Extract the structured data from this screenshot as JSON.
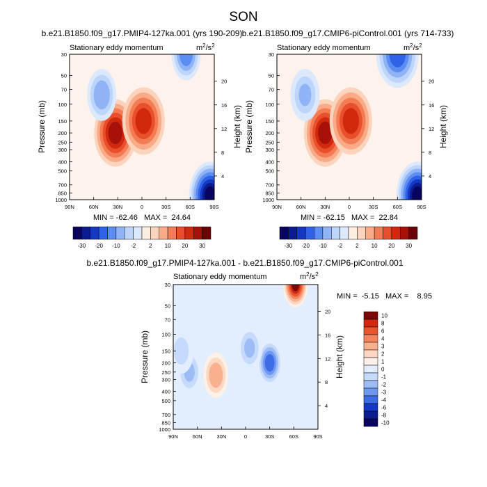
{
  "title": "SON",
  "contour_levels_full": [
    -30,
    -25,
    -20,
    -15,
    -10,
    -5,
    -2,
    -1,
    1,
    2,
    5,
    10,
    15,
    20,
    25,
    30
  ],
  "colorbar_full_labels": [
    "-30",
    "-20",
    "-10",
    "-2",
    "2",
    "10",
    "20",
    "30"
  ],
  "contour_levels_diff": [
    -10,
    -8,
    -6,
    -4,
    -3,
    -2,
    -1,
    0,
    1,
    2,
    3,
    4,
    6,
    8,
    10
  ],
  "colorbar_diff_labels": [
    "10",
    "8",
    "6",
    "4",
    "3",
    "2",
    "1",
    "0",
    "-1",
    "-2",
    "-3",
    "-4",
    "-6",
    "-8",
    "-10"
  ],
  "colors_full": [
    "#08045f",
    "#0a1c8f",
    "#1437c4",
    "#2f62e6",
    "#5b8df2",
    "#8fb3f5",
    "#bdd5fb",
    "#dce9fd",
    "#fdeee2",
    "#fcd3bd",
    "#f9aa86",
    "#f47c55",
    "#e94f2a",
    "#d1290e",
    "#a6120a",
    "#6a0507"
  ],
  "colors_diff": [
    "#08045f",
    "#0a1c8f",
    "#1437c4",
    "#3d6ce6",
    "#6e98f0",
    "#9dbcf6",
    "#c6dbfb",
    "#e2eefd",
    "#fdf0e6",
    "#fcd8c2",
    "#f9b08f",
    "#f4845d",
    "#e9552f",
    "#d1290e",
    "#7a0806"
  ],
  "chart_data": [
    {
      "type": "heatmap",
      "id": "left",
      "title": "b.e21.B1850.f09_g17.PMIP4-127ka.001 (yrs 190-209)",
      "left_label": "Stationary eddy momentum",
      "units": "m²/s²",
      "ylabel": "Pressure (mb)",
      "ylabel_right": "Height (km)",
      "x_ticks": [
        "90N",
        "60N",
        "30N",
        "0",
        "30S",
        "60S",
        "90S"
      ],
      "y_ticks": [
        "30",
        "50",
        "70",
        "100",
        "150",
        "200",
        "250",
        "300",
        "400",
        "500",
        "700",
        "850",
        "1000"
      ],
      "height_ticks": [
        "20",
        "16",
        "12",
        "8",
        "4"
      ],
      "min_max": "MIN = -62.46   MAX =  24.64",
      "ylim": [
        1000,
        30
      ],
      "xlim": [
        90,
        -90
      ],
      "features": [
        {
          "lat": 33,
          "p": 200,
          "value": 24.6
        },
        {
          "lat": -2,
          "p": 150,
          "value": 19
        },
        {
          "lat": 50,
          "p": 80,
          "value": -6
        },
        {
          "lat": -55,
          "p": 30,
          "value": -12
        },
        {
          "lat": -85,
          "p": 900,
          "value": -62.5
        }
      ]
    },
    {
      "type": "heatmap",
      "id": "right",
      "title": "b.e21.B1850.f09_g17.CMIP6-piControl.001 (yrs 714-733)",
      "left_label": "Stationary eddy momentum",
      "units": "m²/s²",
      "ylabel": "Pressure (mb)",
      "ylabel_right": "Height (km)",
      "x_ticks": [
        "90N",
        "60N",
        "30N",
        "0",
        "30S",
        "60S",
        "90S"
      ],
      "y_ticks": [
        "30",
        "50",
        "70",
        "100",
        "150",
        "200",
        "250",
        "300",
        "400",
        "500",
        "700",
        "850",
        "1000"
      ],
      "height_ticks": [
        "20",
        "16",
        "12",
        "8",
        "4"
      ],
      "min_max": "MIN = -62.15   MAX =  22.84",
      "ylim": [
        1000,
        30
      ],
      "xlim": [
        90,
        -90
      ],
      "features": [
        {
          "lat": 30,
          "p": 200,
          "value": 22.8
        },
        {
          "lat": -2,
          "p": 150,
          "value": 18
        },
        {
          "lat": 55,
          "p": 80,
          "value": -5
        },
        {
          "lat": -60,
          "p": 30,
          "value": -18
        },
        {
          "lat": -85,
          "p": 900,
          "value": -62.2
        }
      ]
    },
    {
      "type": "heatmap",
      "id": "diff",
      "title": "b.e21.B1850.f09_g17.PMIP4-127ka.001 - b.e21.B1850.f09_g17.CMIP6-piControl.001",
      "left_label": "Stationary eddy momentum",
      "units": "m²/s²",
      "ylabel": "Pressure (mb)",
      "ylabel_right": "Height (km)",
      "x_ticks": [
        "90N",
        "60N",
        "30N",
        "0",
        "30S",
        "60S",
        "90S"
      ],
      "y_ticks": [
        "30",
        "50",
        "70",
        "100",
        "150",
        "200",
        "250",
        "300",
        "400",
        "500",
        "700",
        "850",
        "1000"
      ],
      "height_ticks": [
        "20",
        "16",
        "12",
        "8",
        "4"
      ],
      "min_max": "MIN =  -5.15   MAX =    8.95",
      "ylim": [
        1000,
        30
      ],
      "xlim": [
        90,
        -90
      ],
      "features": [
        {
          "lat": -62,
          "p": 30,
          "value": 8.95
        },
        {
          "lat": 37,
          "p": 270,
          "value": 3
        },
        {
          "lat": -30,
          "p": 200,
          "value": -5.15
        },
        {
          "lat": -5,
          "p": 140,
          "value": -2
        },
        {
          "lat": 70,
          "p": 250,
          "value": -2
        },
        {
          "lat": 80,
          "p": 150,
          "value": -1
        }
      ]
    }
  ]
}
